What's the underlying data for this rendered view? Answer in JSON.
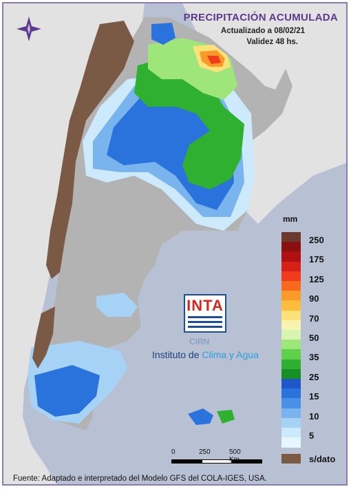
{
  "title": "PRECIPITACIÓN ACUMULADA",
  "updated": "Actualizado a 08/02/21",
  "validity": "Validez 48 hs.",
  "legend": {
    "unit": "mm",
    "bins": [
      {
        "label": "250",
        "color": "#6b3a2c"
      },
      {
        "label": "",
        "color": "#8a1010"
      },
      {
        "label": "175",
        "color": "#b01010"
      },
      {
        "label": "",
        "color": "#d62018"
      },
      {
        "label": "125",
        "color": "#f23a1c"
      },
      {
        "label": "",
        "color": "#f76a1c"
      },
      {
        "label": "90",
        "color": "#fb9a28"
      },
      {
        "label": "",
        "color": "#fdbc3c"
      },
      {
        "label": "70",
        "color": "#fde27a"
      },
      {
        "label": "",
        "color": "#f7f3b0"
      },
      {
        "label": "50",
        "color": "#d9f4b0"
      },
      {
        "label": "",
        "color": "#9ee67a"
      },
      {
        "label": "35",
        "color": "#5ed04a"
      },
      {
        "label": "",
        "color": "#2fb030"
      },
      {
        "label": "25",
        "color": "#168f24"
      },
      {
        "label": "",
        "color": "#1e58c8"
      },
      {
        "label": "15",
        "color": "#2a72dc"
      },
      {
        "label": "",
        "color": "#4a90e6"
      },
      {
        "label": "10",
        "color": "#79b4ee"
      },
      {
        "label": "",
        "color": "#a6d2f6"
      },
      {
        "label": "5",
        "color": "#cdeafc"
      },
      {
        "label": "",
        "color": "#e6f6ff"
      }
    ],
    "nodata_label": "s/dato",
    "nodata_color": "#7a5a44"
  },
  "logo": {
    "inta": "INTA",
    "cirn": "CIRN",
    "instituto_a": "Instituto de ",
    "instituto_b": "Clima y Agua"
  },
  "scale": {
    "l0": "0",
    "l1": "250",
    "l2": "500 Km"
  },
  "footer": "Fuente: Adaptado e interpretado del Modelo GFS del COLA-IGES, USA.",
  "colors": {
    "frame": "#8a7ab8",
    "title": "#5b3a8c",
    "ocean": "#b8c0d4",
    "land_other": "#e4e4e4",
    "dry": "#b0b0b0"
  }
}
